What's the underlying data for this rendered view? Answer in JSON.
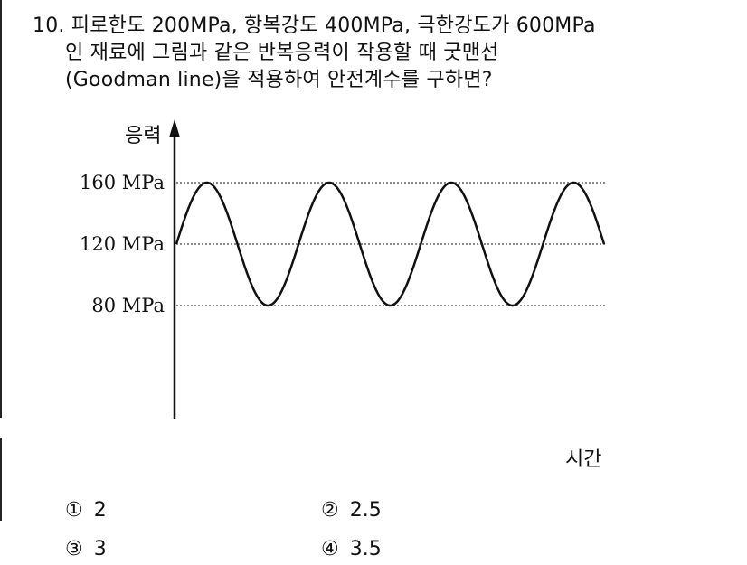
{
  "question": {
    "line1": "10. 피로한도 200MPa, 항복강도 400MPa, 극한강도가 600MPa",
    "line2": "인 재료에 그림과 같은 반복응력이 작용할 때 굿맨선",
    "line3": "(Goodman line)을 적용하여 안전계수를 구하면?"
  },
  "choices": [
    {
      "marker": "①",
      "text": "2"
    },
    {
      "marker": "②",
      "text": "2.5"
    },
    {
      "marker": "③",
      "text": "3"
    },
    {
      "marker": "④",
      "text": "3.5"
    }
  ],
  "chart_data": {
    "type": "line",
    "ylabel": "응력",
    "xlabel": "시간",
    "y_ticks": [
      "160 MPa",
      "120 MPa",
      "80 MPa"
    ],
    "y_tick_values": [
      160,
      120,
      80
    ],
    "series": [
      {
        "mean": 120,
        "amplitude": 40,
        "cycles": 3.5,
        "start_value": 120
      }
    ],
    "grid": "dotted horizontal lines at 160, 120, 80",
    "line_color": "#111111"
  }
}
